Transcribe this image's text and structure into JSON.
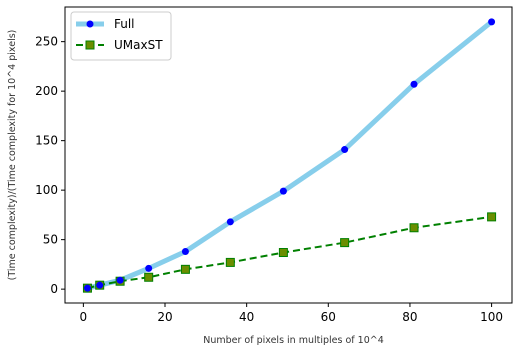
{
  "chart_data": {
    "type": "line",
    "title": "",
    "xlabel": "Number of pixels in multiples of 10^4",
    "ylabel": "(Time complexity)/(Time complexity for 10^4 pixels)",
    "xlim": [
      -4.5,
      105
    ],
    "ylim": [
      -14,
      285
    ],
    "xticks": [
      0,
      20,
      40,
      60,
      80,
      100
    ],
    "yticks": [
      0,
      50,
      100,
      150,
      200,
      250
    ],
    "grid": false,
    "legend_position": "top-left",
    "series": [
      {
        "name": "Full",
        "x": [
          1,
          4,
          9,
          16,
          25,
          36,
          49,
          64,
          81,
          100
        ],
        "y": [
          1,
          4,
          9,
          21,
          38,
          68,
          99,
          141,
          207,
          270
        ],
        "line_color": "#87ceeb",
        "marker_color": "#0000ff",
        "line_style": "solid",
        "marker": "circle"
      },
      {
        "name": "UMaxST",
        "x": [
          1,
          4,
          9,
          16,
          25,
          36,
          49,
          64,
          81,
          100
        ],
        "y": [
          1,
          4,
          8,
          12,
          20,
          27,
          37,
          47,
          62,
          73
        ],
        "line_color": "#008000",
        "marker_color": "#6b8e00",
        "line_style": "dashed",
        "marker": "square"
      }
    ]
  }
}
